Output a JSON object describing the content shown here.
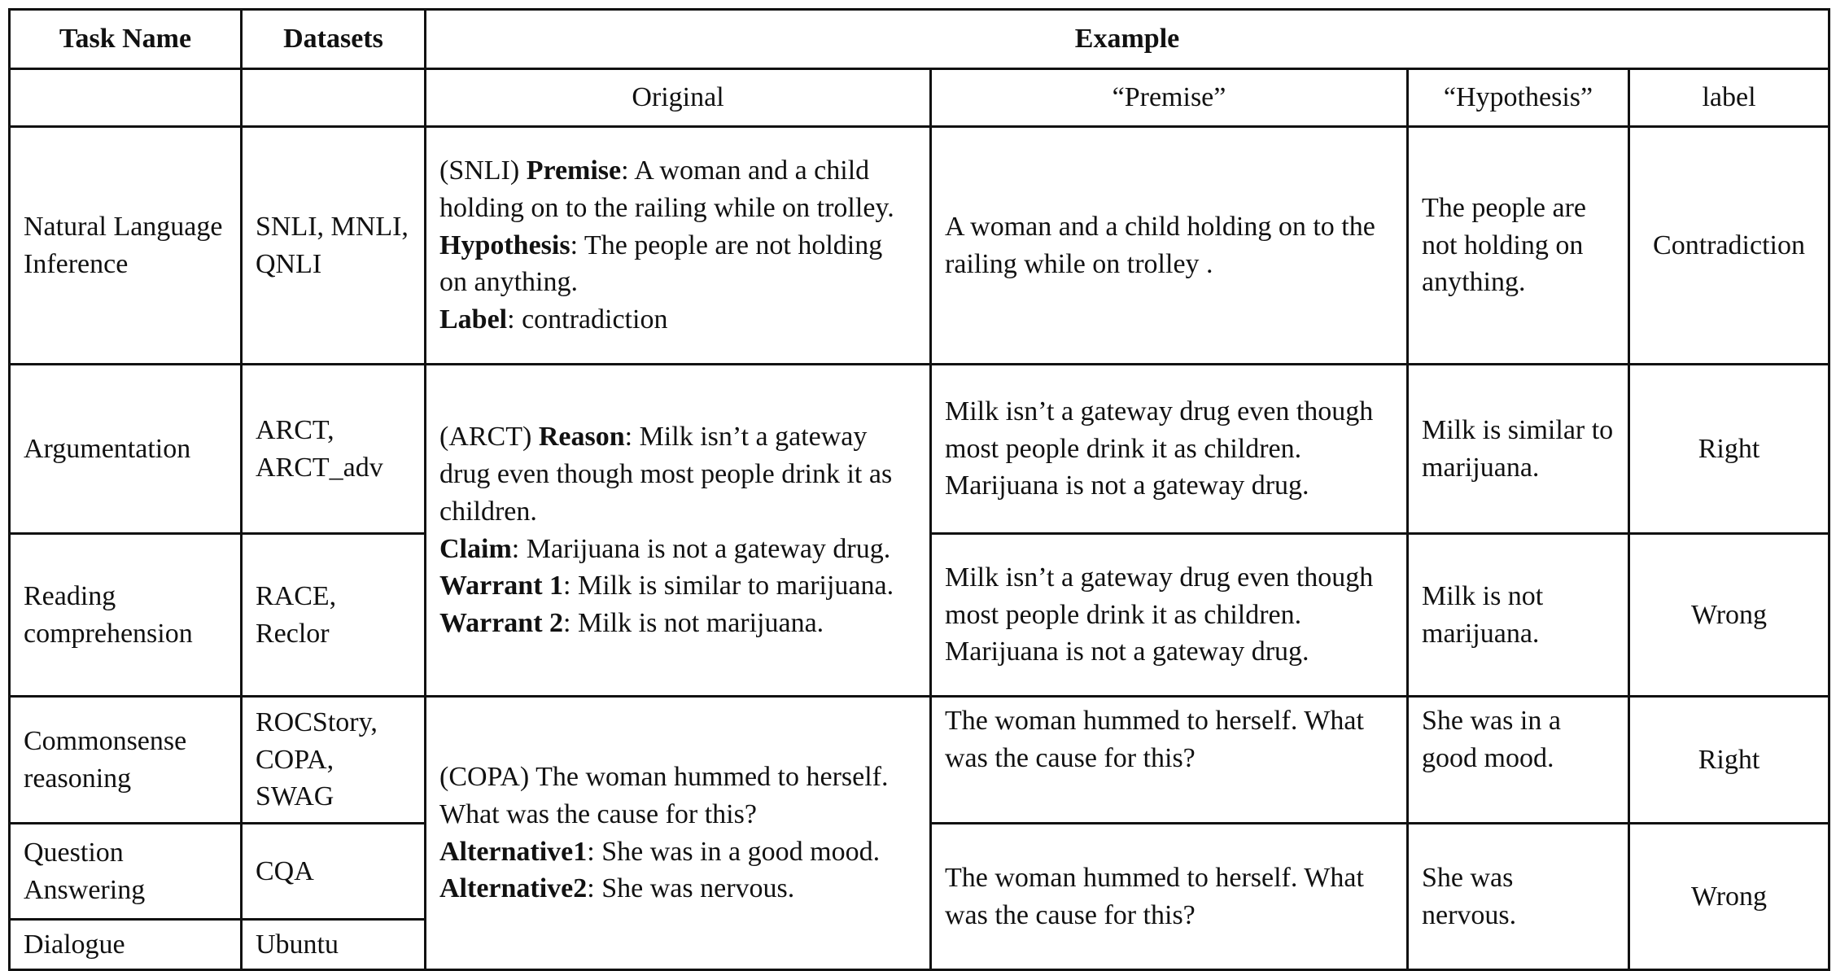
{
  "header": {
    "task_name": "Task Name",
    "datasets": "Datasets",
    "example": "Example"
  },
  "subheader": {
    "original": "Original",
    "premise": "“Premise”",
    "hypothesis": "“Hypothesis”",
    "label": "label"
  },
  "rows": {
    "nli": {
      "task": "Natural Language Inference",
      "datasets": "SNLI, MNLI, QNLI",
      "orig_tag": "(SNLI) ",
      "orig_premise_key": "Premise",
      "orig_premise_val": ": A woman and a child holding on to the railing while on trolley.",
      "orig_hyp_key": "Hypothesis",
      "orig_hyp_val": ": The people are not holding on  anything.",
      "orig_label_key": "Label",
      "orig_label_val": ": contradiction",
      "premise": "A woman and a child holding on to the railing while on trolley .",
      "hypothesis": "The people are not holding on anything.",
      "label": "Contradiction"
    },
    "arg": {
      "task": "Argumentation",
      "datasets": "ARCT, ARCT_adv",
      "orig_tag": "(ARCT) ",
      "orig_reason_key": "Reason",
      "orig_reason_val": ": Milk isn’t a gateway drug even though most people drink it as children.",
      "orig_claim_key": "Claim",
      "orig_claim_val": ": Marijuana is not a gateway drug.",
      "orig_w1_key": "Warrant 1",
      "orig_w1_val": ": Milk is similar to marijuana.",
      "orig_w2_key": "Warrant 2",
      "orig_w2_val": ": Milk is not marijuana.",
      "premise_1": "Milk isn’t a gateway drug even though most people drink it as children. Marijuana is not a gateway drug.",
      "hypothesis_1": "Milk is similar to marijuana.",
      "label_1": "Right",
      "premise_2": "Milk isn’t a gateway drug even though most people drink it as children. Marijuana is not a gateway drug.",
      "hypothesis_2": "Milk is not marijuana.",
      "label_2": "Wrong"
    },
    "rc": {
      "task": "Reading comprehension",
      "datasets": "RACE, Reclor"
    },
    "cs": {
      "task": "Commonsense reasoning",
      "datasets": "ROCStory, COPA, SWAG",
      "orig_tag": "(COPA) ",
      "orig_text": "The woman hummed to herself. What was the cause for this?",
      "orig_alt1_key": "Alternative1",
      "orig_alt1_val": ": She was in a good mood.",
      "orig_alt2_key": "Alternative2",
      "orig_alt2_val": ": She was nervous.",
      "premise_1": "The woman hummed to herself. What was the cause for this?",
      "hypothesis_1": "She was in a good mood.",
      "label_1": "Right",
      "premise_2": "The woman hummed to herself. What was the cause for this?",
      "hypothesis_2": "She was nervous.",
      "label_2": "Wrong"
    },
    "qa": {
      "task": "Question Answering",
      "datasets": "CQA"
    },
    "dlg": {
      "task": "Dialogue",
      "datasets": "Ubuntu"
    }
  }
}
